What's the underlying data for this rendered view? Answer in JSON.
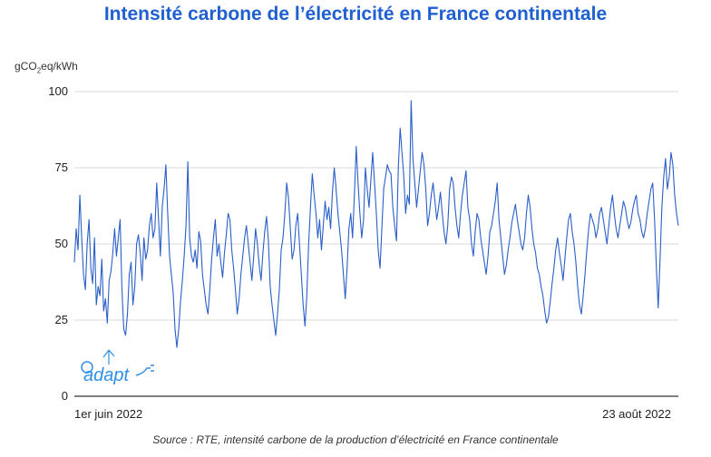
{
  "title": "Intensité carbone de l’électricité en France continentale",
  "y_unit": {
    "prefix": "gCO",
    "sub": "2",
    "suffix": "eq/kWh"
  },
  "source": "Source : RTE, intensité carbone de la production d’électricité en France continentale",
  "logo_text": "adapt",
  "colors": {
    "title": "#1f5fd0",
    "line": "#2a5fc8",
    "grid": "#d9d9d9",
    "logo": "#2f8fe6"
  },
  "chart_data": {
    "type": "line",
    "title": "Intensité carbone de l’électricité en France continentale",
    "xlabel": "",
    "ylabel": "gCO2eq/kWh",
    "ylim": [
      0,
      100
    ],
    "yticks": [
      0,
      25,
      50,
      75,
      100
    ],
    "x_start": "2022-06-01",
    "x_end": "2022-08-23",
    "xtick_labels": [
      "1er juin 2022",
      "23 août 2022"
    ],
    "grid": true,
    "series": [
      {
        "values": [
          44,
          55,
          48,
          66,
          52,
          40,
          35,
          50,
          58,
          42,
          37,
          52,
          30,
          36,
          33,
          45,
          28,
          32,
          24,
          38,
          41,
          47,
          55,
          46,
          52,
          58,
          35,
          22,
          20,
          27,
          40,
          44,
          30,
          36,
          50,
          53,
          47,
          38,
          52,
          45,
          48,
          56,
          60,
          52,
          55,
          70,
          58,
          46,
          62,
          68,
          76,
          60,
          46,
          40,
          34,
          22,
          16,
          22,
          31,
          38,
          46,
          56,
          77,
          52,
          46,
          44,
          48,
          42,
          54,
          51,
          40,
          35,
          30,
          27,
          35,
          45,
          52,
          58,
          46,
          50,
          44,
          39,
          47,
          53,
          60,
          58,
          48,
          42,
          35,
          27,
          32,
          40,
          46,
          52,
          56,
          50,
          44,
          38,
          46,
          55,
          50,
          43,
          38,
          47,
          54,
          59,
          51,
          36,
          30,
          25,
          20,
          27,
          35,
          48,
          52,
          60,
          70,
          65,
          55,
          45,
          48,
          56,
          60,
          50,
          40,
          30,
          23,
          33,
          50,
          62,
          73,
          66,
          60,
          52,
          58,
          48,
          56,
          64,
          58,
          62,
          55,
          67,
          75,
          68,
          60,
          54,
          48,
          40,
          32,
          42,
          55,
          60,
          52,
          66,
          82,
          70,
          60,
          52,
          58,
          75,
          68,
          62,
          71,
          80,
          70,
          60,
          48,
          42,
          55,
          68,
          72,
          76,
          74,
          73,
          62,
          56,
          51,
          75,
          88,
          80,
          72,
          60,
          66,
          63,
          97,
          78,
          70,
          62,
          68,
          74,
          80,
          76,
          68,
          56,
          60,
          66,
          70,
          64,
          58,
          62,
          67,
          60,
          54,
          50,
          56,
          68,
          72,
          70,
          62,
          56,
          52,
          60,
          66,
          70,
          74,
          62,
          58,
          50,
          46,
          54,
          60,
          58,
          52,
          48,
          44,
          40,
          46,
          54,
          56,
          60,
          64,
          70,
          58,
          52,
          46,
          40,
          43,
          48,
          52,
          57,
          60,
          63,
          58,
          54,
          50,
          48,
          52,
          60,
          66,
          62,
          55,
          50,
          47,
          42,
          40,
          36,
          33,
          28,
          24,
          26,
          31,
          37,
          42,
          48,
          52,
          47,
          43,
          38,
          45,
          52,
          58,
          60,
          54,
          50,
          44,
          36,
          30,
          27,
          33,
          40,
          48,
          55,
          60,
          58,
          56,
          52,
          55,
          60,
          62,
          58,
          54,
          50,
          56,
          62,
          66,
          60,
          55,
          52,
          56,
          60,
          64,
          62,
          58,
          55,
          57,
          61,
          64,
          66,
          60,
          58,
          54,
          52,
          55,
          60,
          64,
          68,
          70,
          58,
          42,
          29,
          45,
          62,
          72,
          78,
          68,
          72,
          80,
          76,
          66,
          60,
          56
        ]
      }
    ]
  }
}
